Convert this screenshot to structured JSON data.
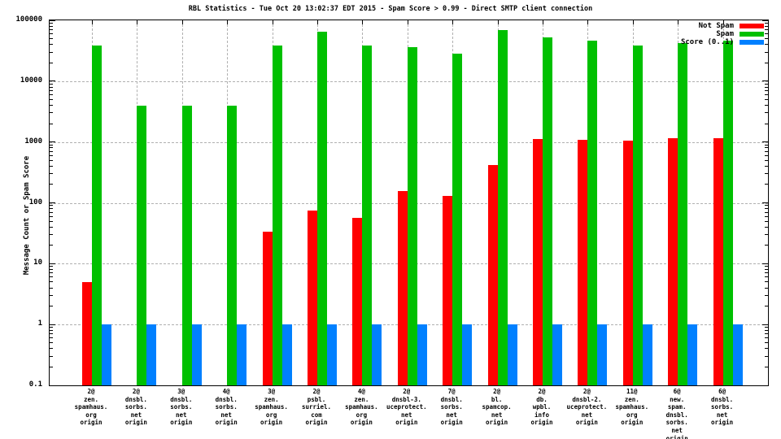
{
  "title": "RBL Statistics - Tue Oct 20 13:02:37 EDT 2015 - Spam Score > 0.99 - Direct SMTP client connection",
  "colors": {
    "not_spam": "#ff0000",
    "spam": "#00c000",
    "score": "#0080ff",
    "grid": "#b0b0b0",
    "axis": "#000000"
  },
  "chart_data": {
    "type": "bar",
    "scale": "log",
    "title": "RBL Statistics - Tue Oct 20 13:02:37 EDT 2015 - Spam Score > 0.99 - Direct SMTP client connection",
    "xlabel": "",
    "ylabel": "Message Count or Spam Score",
    "ylim": [
      0.1,
      100000
    ],
    "grid": true,
    "legend_position": "top-right",
    "yticks": [
      {
        "label": "100000",
        "value": 100000
      },
      {
        "label": "10000",
        "value": 10000
      },
      {
        "label": "1000",
        "value": 1000
      },
      {
        "label": "100",
        "value": 100
      },
      {
        "label": "10",
        "value": 10
      },
      {
        "label": "1",
        "value": 1
      },
      {
        "label": "0.1",
        "value": 0.1
      }
    ],
    "categories": [
      [
        "2@",
        "zen.",
        "spamhaus.",
        "org",
        "origin"
      ],
      [
        "2@",
        "dnsbl.",
        "sorbs.",
        "net",
        "origin"
      ],
      [
        "3@",
        "dnsbl.",
        "sorbs.",
        "net",
        "origin"
      ],
      [
        "4@",
        "dnsbl.",
        "sorbs.",
        "net",
        "origin"
      ],
      [
        "3@",
        "zen.",
        "spamhaus.",
        "org",
        "origin"
      ],
      [
        "2@",
        "psbl.",
        "surriel.",
        "com",
        "origin"
      ],
      [
        "4@",
        "zen.",
        "spamhaus.",
        "org",
        "origin"
      ],
      [
        "2@",
        "dnsbl-3.",
        "uceprotect.",
        "net",
        "origin"
      ],
      [
        "7@",
        "dnsbl.",
        "sorbs.",
        "net",
        "origin"
      ],
      [
        "2@",
        "bl.",
        "spamcop.",
        "net",
        "origin"
      ],
      [
        "2@",
        "db.",
        "wpbl.",
        "info",
        "origin"
      ],
      [
        "2@",
        "dnsbl-2.",
        "uceprotect.",
        "net",
        "origin"
      ],
      [
        "11@",
        "zen.",
        "spamhaus.",
        "org",
        "origin"
      ],
      [
        "6@",
        "new.",
        "spam.",
        "dnsbl.",
        "sorbs.",
        "net",
        "origin"
      ],
      [
        "6@",
        "dnsbl.",
        "sorbs.",
        "net",
        "origin"
      ]
    ],
    "series": [
      {
        "name": "Not Spam",
        "color": "#ff0000",
        "values": [
          5,
          null,
          null,
          null,
          34,
          74,
          56,
          157,
          129,
          414,
          1120,
          1100,
          1050,
          1170,
          1160
        ]
      },
      {
        "name": "Spam",
        "color": "#00c000",
        "values": [
          38000,
          4000,
          4000,
          4000,
          38000,
          66000,
          38500,
          36000,
          28500,
          69000,
          52000,
          47000,
          38500,
          42000,
          46000
        ]
      },
      {
        "name": "Score (0..1)",
        "color": "#0080ff",
        "values": [
          1,
          1,
          1,
          1,
          1,
          1,
          1,
          1,
          1,
          1,
          1,
          1,
          1,
          1,
          1
        ]
      }
    ]
  }
}
